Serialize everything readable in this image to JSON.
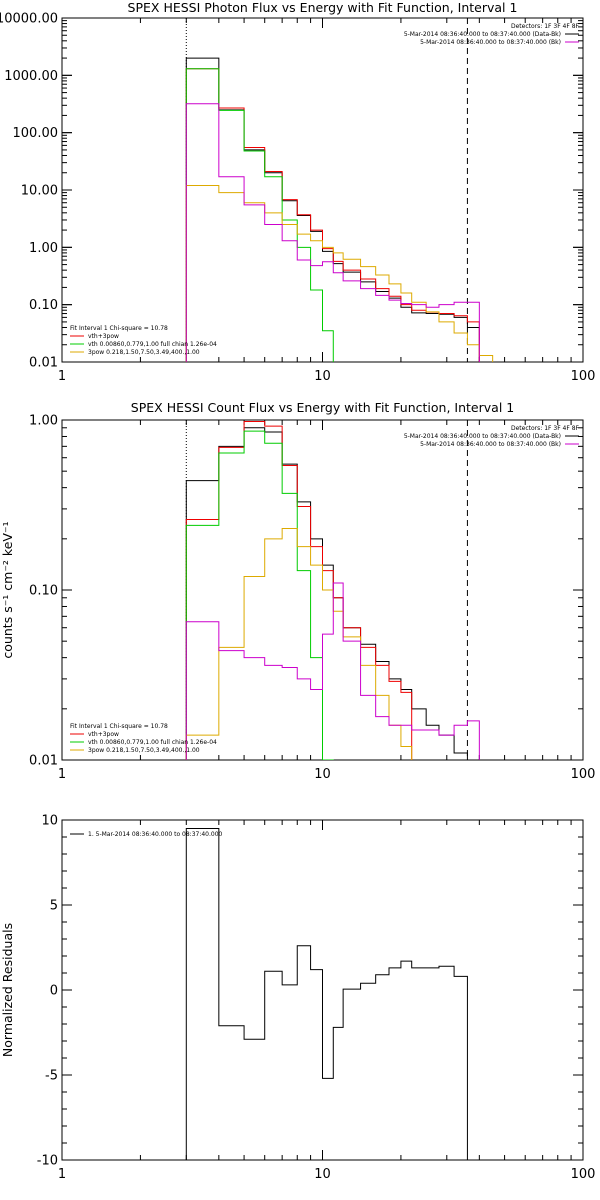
{
  "chart_data": [
    {
      "type": "line",
      "title": "SPEX HESSI Photon Flux vs Energy with Fit Function, Interval 1",
      "xlabel": "",
      "ylabel": "",
      "xscale": "log",
      "yscale": "log",
      "xlim": [
        1,
        100
      ],
      "ylim": [
        0.01,
        10000
      ],
      "x_tick_labels": [
        "1",
        "10",
        "100"
      ],
      "y_tick_labels": [
        "0.01",
        "0.10",
        "1.00",
        "10.00",
        "100.00",
        "1000.00",
        "10000.00"
      ],
      "vline_dotted": 3,
      "vline_dashed": 36,
      "legend_right": {
        "detectors": "Detectors: 1F 3F 4F 8F",
        "lines": [
          {
            "text": "5-Mar-2014 08:36:40.000 to 08:37:40.000 (Data-Bk)",
            "color": "#000000"
          },
          {
            "text": "5-Mar-2014 08:36:40.000 to 08:37:40.000 (Bk)",
            "color": "#cc00cc"
          }
        ]
      },
      "legend_left": {
        "header": "Fit Interval 1    Chi-square = 10.78",
        "lines": [
          {
            "text": "vth+3pow",
            "color": "#ee0000"
          },
          {
            "text": "vth 0.00860,0.779,1.00   full chian 1.26e-04",
            "color": "#00cc00"
          },
          {
            "text": "3pow 0.218,1.50,7.50,3.49,400.,1.00",
            "color": "#ddaa00"
          }
        ]
      },
      "edges": [
        3,
        4,
        5,
        6,
        7,
        8,
        9,
        10,
        11,
        12,
        14,
        16,
        18,
        20,
        22,
        25,
        28,
        32,
        36,
        40,
        45
      ],
      "series": [
        {
          "color": "#000000",
          "values": [
            2000,
            250,
            50,
            20,
            6.5,
            3.6,
            1.9,
            0.85,
            0.52,
            0.37,
            0.25,
            0.17,
            0.13,
            0.09,
            0.072,
            0.07,
            0.068,
            0.06,
            0.04
          ]
        },
        {
          "color": "#ee0000",
          "values": [
            1300,
            270,
            55,
            21,
            6.8,
            3.7,
            2.0,
            0.95,
            0.57,
            0.4,
            0.28,
            0.19,
            0.14,
            0.1,
            0.08,
            0.074,
            0.07,
            0.064,
            0.05
          ]
        },
        {
          "color": "#00cc00",
          "values": [
            1300,
            245,
            48,
            17,
            3.0,
            1.0,
            0.18,
            0.035
          ]
        },
        {
          "color": "#ddaa00",
          "values": [
            12,
            9,
            6,
            4,
            2.5,
            1.7,
            1.3,
            1.0,
            0.8,
            0.62,
            0.46,
            0.33,
            0.23,
            0.16,
            0.11,
            0.075,
            0.05,
            0.032,
            0.02,
            0.013,
            0.01
          ]
        },
        {
          "color": "#cc00cc",
          "values": [
            320,
            17,
            5.5,
            2.5,
            1.3,
            0.6,
            0.48,
            0.56,
            0.36,
            0.26,
            0.19,
            0.145,
            0.12,
            0.105,
            0.1,
            0.09,
            0.1,
            0.11,
            0.11
          ]
        }
      ]
    },
    {
      "type": "line",
      "title": "SPEX HESSI Count Flux vs Energy with Fit Function, Interval 1",
      "xlabel": "",
      "ylabel": "counts s⁻¹ cm⁻² keV⁻¹",
      "xscale": "log",
      "yscale": "log",
      "xlim": [
        1,
        100
      ],
      "ylim": [
        0.01,
        1
      ],
      "x_tick_labels": [
        "1",
        "10",
        "100"
      ],
      "y_tick_labels": [
        "0.01",
        "0.10",
        "1.00"
      ],
      "vline_dotted": 3,
      "vline_dashed": 36,
      "legend_right": {
        "detectors": "Detectors: 1F 3F 4F 8F",
        "lines": [
          {
            "text": "5-Mar-2014 08:36:40.000 to 08:37:40.000 (Data-Bk)",
            "color": "#000000"
          },
          {
            "text": "5-Mar-2014 08:36:40.000 to 08:37:40.000 (Bk)",
            "color": "#cc00cc"
          }
        ]
      },
      "legend_left": {
        "header": "Fit Interval 1    Chi-square = 10.78",
        "lines": [
          {
            "text": "vth+3pow",
            "color": "#ee0000"
          },
          {
            "text": "vth 0.00860,0.779,1.00   full chian 1.26e-04",
            "color": "#00cc00"
          },
          {
            "text": "3pow 0.218,1.50,7.50,3.49,400.,1.00",
            "color": "#ddaa00"
          }
        ]
      },
      "edges": [
        3,
        4,
        5,
        6,
        7,
        8,
        9,
        10,
        11,
        12,
        14,
        16,
        18,
        20,
        22,
        25,
        28,
        32,
        36,
        40
      ],
      "series": [
        {
          "color": "#000000",
          "values": [
            0.44,
            0.7,
            0.9,
            0.85,
            0.55,
            0.33,
            0.2,
            0.14,
            0.09,
            0.06,
            0.048,
            0.038,
            0.03,
            0.026,
            0.02,
            0.016,
            0.014,
            0.011,
            0.01
          ]
        },
        {
          "color": "#ee0000",
          "values": [
            0.26,
            0.69,
            0.98,
            0.92,
            0.54,
            0.31,
            0.18,
            0.13,
            0.09,
            0.06,
            0.046,
            0.036,
            0.029,
            0.025
          ]
        },
        {
          "color": "#00cc00",
          "values": [
            0.24,
            0.64,
            0.86,
            0.73,
            0.37,
            0.13,
            0.04,
            0.01
          ]
        },
        {
          "color": "#ddaa00",
          "values": [
            0.014,
            0.046,
            0.12,
            0.2,
            0.23,
            0.18,
            0.14,
            0.1,
            0.075,
            0.053,
            0.036,
            0.024,
            0.016,
            0.012,
            0.009
          ]
        },
        {
          "color": "#cc00cc",
          "values": [
            0.065,
            0.044,
            0.04,
            0.036,
            0.035,
            0.03,
            0.026,
            0.055,
            0.11,
            0.05,
            0.024,
            0.018,
            0.016,
            0.016,
            0.015,
            0.015,
            0.014,
            0.016,
            0.017
          ]
        }
      ]
    },
    {
      "type": "line",
      "title": "",
      "xlabel": "",
      "ylabel": "Normalized Residuals",
      "xscale": "log",
      "yscale": "linear",
      "xlim": [
        1,
        100
      ],
      "ylim": [
        -10,
        10
      ],
      "x_tick_labels": [
        "1",
        "10",
        "100"
      ],
      "y_tick_labels": [
        "-10",
        "-5",
        "0",
        "5",
        "10"
      ],
      "legend": "1.  5-Mar-2014 08:36:40.000 to 08:37:40.000",
      "edges": [
        3,
        4,
        5,
        6,
        7,
        8,
        9,
        10,
        11,
        12,
        14,
        16,
        18,
        20,
        22,
        25,
        28,
        32,
        36
      ],
      "series": [
        {
          "color": "#000000",
          "values": [
            9.5,
            -2.1,
            -2.9,
            1.1,
            0.3,
            2.6,
            1.2,
            -5.2,
            -2.2,
            0.05,
            0.4,
            0.9,
            1.3,
            1.7,
            1.3,
            1.3,
            1.4,
            0.8
          ]
        }
      ]
    }
  ]
}
